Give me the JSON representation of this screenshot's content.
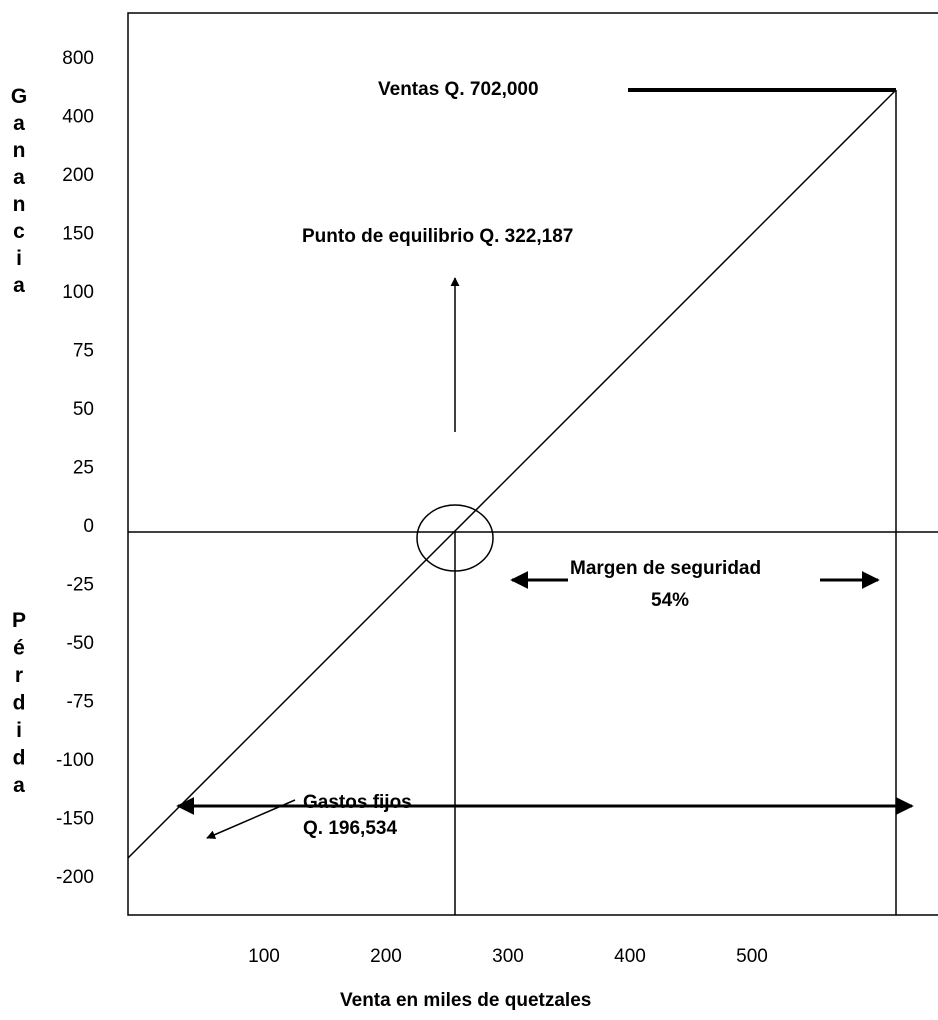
{
  "chart_data": {
    "type": "line",
    "xlabel": "Venta en miles de quetzales",
    "y_upper_label": "Ganancia",
    "y_lower_label": "Pérdida",
    "x_ticks": [
      "100",
      "200",
      "300",
      "400",
      "500"
    ],
    "y_ticks": [
      "800",
      "400",
      "200",
      "150",
      "100",
      "75",
      "50",
      "25",
      "0",
      "-25",
      "-50",
      "-75",
      "-100",
      "-150",
      "-200"
    ],
    "annotations": {
      "ventas": "Ventas Q. 702,000",
      "equilibrio": "Punto de equilibrio Q. 322,187",
      "margen": "Margen de seguridad",
      "margen_pct": "54%",
      "gastos_fijos": "Gastos fijos",
      "gastos_valor": "Q.  196,534"
    },
    "grid": false,
    "legend": "none"
  }
}
